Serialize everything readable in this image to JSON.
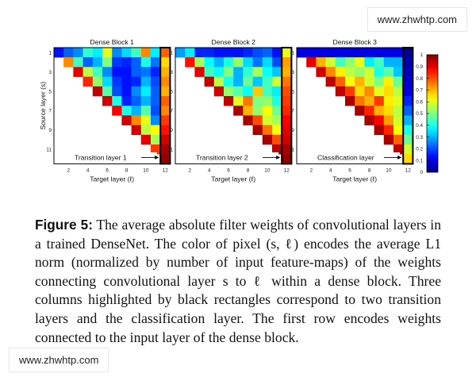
{
  "chart_data": {
    "type": "heatmap",
    "panels": [
      {
        "title": "Dense Block 1",
        "highlight_label": "Transition layer 1",
        "values": [
          [
            0.14,
            0.22,
            0.26,
            0.42,
            0.36,
            0.6,
            0.26,
            0.34,
            0.44,
            0.74,
            0.36,
            0.78
          ],
          [
            null,
            0.74,
            0.44,
            0.22,
            0.3,
            0.5,
            0.18,
            0.16,
            0.22,
            0.4,
            0.24,
            0.66
          ],
          [
            null,
            null,
            0.9,
            0.56,
            0.44,
            0.26,
            0.14,
            0.14,
            0.22,
            0.24,
            0.16,
            0.7
          ],
          [
            null,
            null,
            null,
            0.84,
            0.52,
            0.34,
            0.18,
            0.14,
            0.16,
            0.3,
            0.2,
            0.74
          ],
          [
            null,
            null,
            null,
            null,
            0.94,
            0.46,
            0.2,
            0.14,
            0.26,
            0.36,
            0.22,
            0.7
          ],
          [
            null,
            null,
            null,
            null,
            null,
            0.92,
            0.4,
            0.16,
            0.22,
            0.3,
            0.22,
            0.78
          ],
          [
            null,
            null,
            null,
            null,
            null,
            null,
            0.88,
            0.4,
            0.3,
            0.46,
            0.2,
            0.74
          ],
          [
            null,
            null,
            null,
            null,
            null,
            null,
            null,
            0.92,
            0.74,
            0.6,
            0.26,
            0.82
          ],
          [
            null,
            null,
            null,
            null,
            null,
            null,
            null,
            null,
            0.92,
            0.56,
            0.62,
            0.86
          ],
          [
            null,
            null,
            null,
            null,
            null,
            null,
            null,
            null,
            null,
            0.9,
            0.54,
            0.92
          ],
          [
            null,
            null,
            null,
            null,
            null,
            null,
            null,
            null,
            null,
            null,
            0.82,
            0.96
          ],
          [
            null,
            null,
            null,
            null,
            null,
            null,
            null,
            null,
            null,
            null,
            null,
            0.98
          ]
        ]
      },
      {
        "title": "Dense Block 2",
        "highlight_label": "Transition layer 2",
        "values": [
          [
            0.28,
            0.36,
            0.16,
            0.16,
            0.14,
            0.14,
            0.14,
            0.16,
            0.2,
            0.22,
            0.14,
            0.6
          ],
          [
            null,
            0.86,
            0.54,
            0.38,
            0.3,
            0.4,
            0.52,
            0.34,
            0.24,
            0.34,
            0.2,
            0.72
          ],
          [
            null,
            null,
            0.9,
            0.44,
            0.38,
            0.5,
            0.3,
            0.42,
            0.54,
            0.38,
            0.32,
            0.7
          ],
          [
            null,
            null,
            null,
            0.94,
            0.56,
            0.4,
            0.3,
            0.48,
            0.32,
            0.44,
            0.58,
            0.76
          ],
          [
            null,
            null,
            null,
            null,
            0.92,
            0.52,
            0.46,
            0.38,
            0.68,
            0.44,
            0.36,
            0.8
          ],
          [
            null,
            null,
            null,
            null,
            null,
            0.94,
            0.6,
            0.76,
            0.5,
            0.52,
            0.4,
            0.82
          ],
          [
            null,
            null,
            null,
            null,
            null,
            null,
            0.96,
            0.7,
            0.52,
            0.62,
            0.48,
            0.84
          ],
          [
            null,
            null,
            null,
            null,
            null,
            null,
            null,
            0.96,
            0.8,
            0.58,
            0.54,
            0.88
          ],
          [
            null,
            null,
            null,
            null,
            null,
            null,
            null,
            null,
            0.96,
            0.76,
            0.62,
            0.9
          ],
          [
            null,
            null,
            null,
            null,
            null,
            null,
            null,
            null,
            null,
            0.96,
            0.8,
            0.92
          ],
          [
            null,
            null,
            null,
            null,
            null,
            null,
            null,
            null,
            null,
            null,
            0.94,
            0.96
          ],
          [
            null,
            null,
            null,
            null,
            null,
            null,
            null,
            null,
            null,
            null,
            null,
            0.98
          ]
        ]
      },
      {
        "title": "Dense Block 3",
        "highlight_label": "Classification layer",
        "values": [
          [
            0.1,
            0.1,
            0.1,
            0.1,
            0.1,
            0.1,
            0.1,
            0.1,
            0.1,
            0.1,
            0.1,
            0.02
          ],
          [
            null,
            0.9,
            0.7,
            0.58,
            0.44,
            0.52,
            0.6,
            0.36,
            0.44,
            0.3,
            0.3,
            0.04
          ],
          [
            null,
            null,
            0.92,
            0.74,
            0.64,
            0.56,
            0.52,
            0.58,
            0.4,
            0.46,
            0.32,
            0.06
          ],
          [
            null,
            null,
            null,
            0.94,
            0.78,
            0.62,
            0.7,
            0.58,
            0.5,
            0.64,
            0.48,
            0.08
          ],
          [
            null,
            null,
            null,
            null,
            0.94,
            0.82,
            0.66,
            0.74,
            0.6,
            0.66,
            0.56,
            0.1
          ],
          [
            null,
            null,
            null,
            null,
            null,
            0.96,
            0.76,
            0.7,
            0.82,
            0.64,
            0.6,
            0.16
          ],
          [
            null,
            null,
            null,
            null,
            null,
            null,
            0.96,
            0.84,
            0.7,
            0.66,
            0.56,
            0.22
          ],
          [
            null,
            null,
            null,
            null,
            null,
            null,
            null,
            0.96,
            0.88,
            0.72,
            0.58,
            0.3
          ],
          [
            null,
            null,
            null,
            null,
            null,
            null,
            null,
            null,
            0.96,
            0.84,
            0.62,
            0.4
          ],
          [
            null,
            null,
            null,
            null,
            null,
            null,
            null,
            null,
            null,
            0.96,
            0.78,
            0.48
          ],
          [
            null,
            null,
            null,
            null,
            null,
            null,
            null,
            null,
            null,
            null,
            0.94,
            0.58
          ],
          [
            null,
            null,
            null,
            null,
            null,
            null,
            null,
            null,
            null,
            null,
            null,
            0.66
          ]
        ]
      }
    ],
    "xlabel": "Target layer (ℓ)",
    "ylabel": "Source layer (s)",
    "x_ticks": [
      "2",
      "4",
      "6",
      "8",
      "10",
      "12"
    ],
    "y_ticks": [
      "1",
      "3",
      "5",
      "7",
      "9",
      "11"
    ],
    "colorbar": {
      "range": [
        0,
        1
      ],
      "ticks": [
        "0",
        "0.1",
        "0.2",
        "0.3",
        "0.4",
        "0.5",
        "0.6",
        "0.7",
        "0.8",
        "0.9",
        "1"
      ]
    },
    "grid": false
  },
  "caption": {
    "label": "Figure 5:",
    "text": "The average absolute filter weights of convolutional layers in a trained DenseNet. The color of pixel (s, ℓ) encodes the average L1 norm (normalized by number of input feature-maps) of the weights connecting convolutional layer s to ℓ within a dense block. Three columns highlighted by black rectangles correspond to two transition layers and the classification layer. The first row encodes weights connected to the input layer of the dense block."
  },
  "watermark": {
    "top": "www.zhwhtp.com",
    "bottom": "www.zhwhtp.com"
  }
}
